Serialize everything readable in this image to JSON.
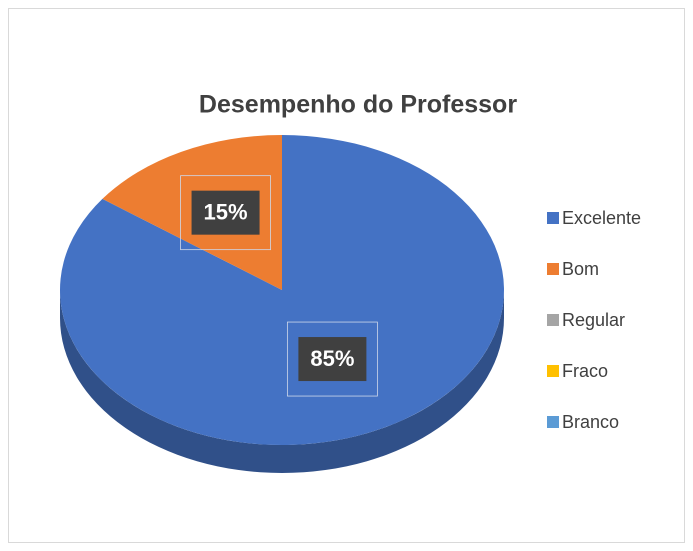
{
  "chart_data": {
    "type": "pie",
    "title": "Desempenho do Professor",
    "categories": [
      "Excelente",
      "Bom",
      "Regular",
      "Fraco",
      "Branco"
    ],
    "values": [
      85,
      15,
      0,
      0,
      0
    ],
    "value_labels": [
      "85%",
      "15%",
      null,
      null,
      null
    ],
    "colors": [
      "#4472c4",
      "#ed7d31",
      "#a5a5a5",
      "#ffc000",
      "#5b9bd5"
    ],
    "legend": "right"
  }
}
